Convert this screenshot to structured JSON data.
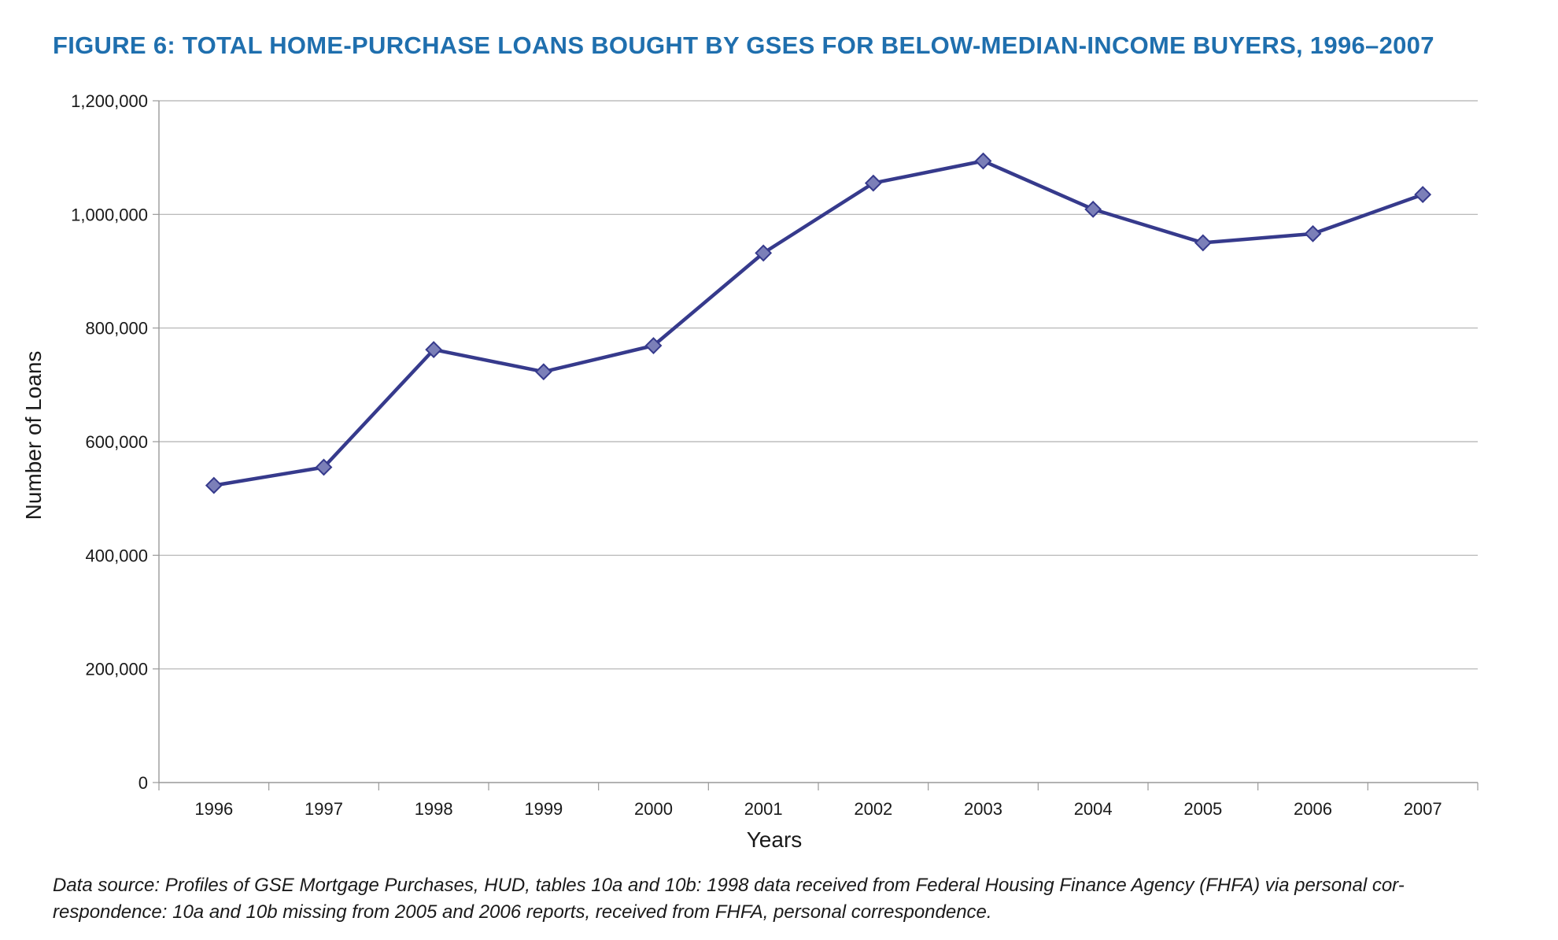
{
  "figure": {
    "title": "FIGURE 6: TOTAL HOME-PURCHASE LOANS BOUGHT BY GSES FOR BELOW-MEDIAN-INCOME BUYERS, 1996–2007",
    "source_line1": "Data source: Profiles of GSE Mortgage Purchases, HUD, tables 10a and 10b: 1998 data received from Federal Housing Finance Agency (FHFA) via personal cor-",
    "source_line2": "respondence: 10a and 10b missing from 2005 and 2006 reports, received from FHFA, personal correspondence."
  },
  "colors": {
    "title": "#1f6fae",
    "line": "#363a8c",
    "marker_fill": "#7b7fb8",
    "marker_stroke": "#363a8c",
    "grid": "#b0b0b0",
    "axis": "#999999"
  },
  "chart_data": {
    "type": "line",
    "title": "FIGURE 6: TOTAL HOME-PURCHASE LOANS BOUGHT BY GSES FOR BELOW-MEDIAN-INCOME BUYERS, 1996–2007",
    "xlabel": "Years",
    "ylabel": "Number of Loans",
    "categories": [
      "1996",
      "1997",
      "1998",
      "1999",
      "2000",
      "2001",
      "2002",
      "2003",
      "2004",
      "2005",
      "2006",
      "2007"
    ],
    "series": [
      {
        "values": [
          523000,
          555000,
          762000,
          723000,
          769000,
          932000,
          1055000,
          1094000,
          1009000,
          950000,
          966000,
          1035000
        ],
        "marker": "diamond"
      }
    ],
    "ylim": [
      0,
      1200000
    ],
    "yticks": [
      0,
      200000,
      400000,
      600000,
      800000,
      1000000,
      1200000
    ],
    "ytick_labels": [
      "0",
      "200,000",
      "400,000",
      "600,000",
      "800,000",
      "1,000,000",
      "1,200,000"
    ],
    "grid": true,
    "legend": "none"
  }
}
